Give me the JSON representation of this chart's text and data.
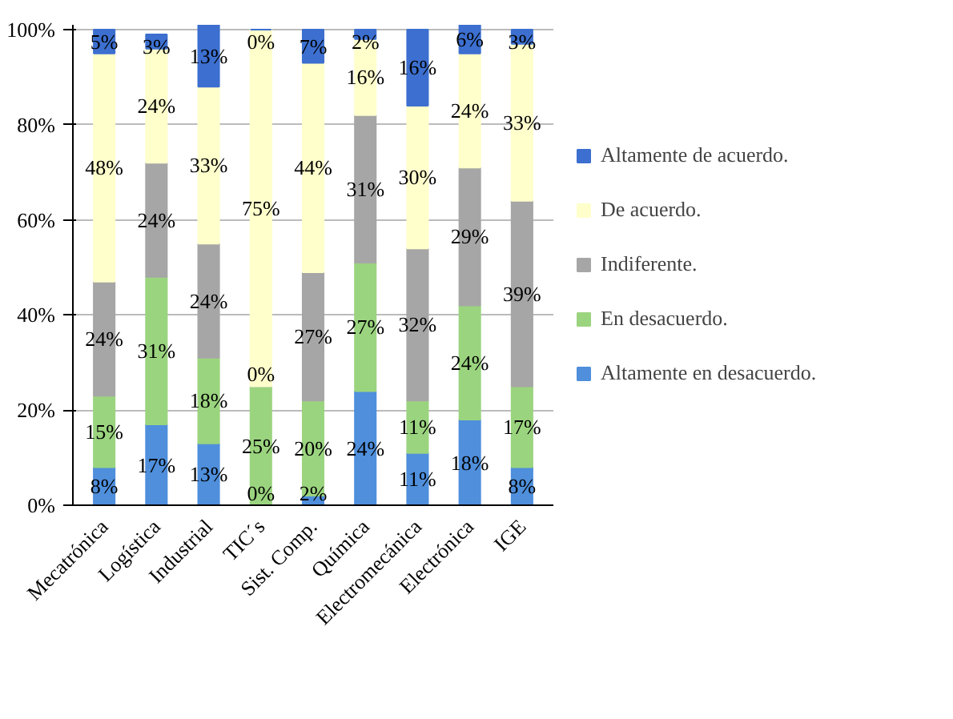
{
  "chart_data": {
    "type": "bar",
    "stacked": true,
    "categories": [
      "Mecatrónica",
      "Logística",
      "Industrial",
      "TIC´s",
      "Sist. Comp.",
      "Química",
      "Electromecánica",
      "Electrónica",
      "IGE"
    ],
    "series": [
      {
        "name": "Altamente en desacuerdo.",
        "color": "#4f8fdc",
        "values": [
          8,
          17,
          13,
          0,
          2,
          24,
          11,
          18,
          8
        ],
        "value_labels": [
          "8%",
          "17%",
          "13%",
          "0%",
          "2%",
          "24%",
          "11%",
          "18%",
          "8%"
        ]
      },
      {
        "name": "En desacuerdo.",
        "color": "#9bd47f",
        "values": [
          15,
          31,
          18,
          25,
          20,
          27,
          11,
          24,
          17
        ],
        "value_labels": [
          "15%",
          "31%",
          "18%",
          "25%",
          "20%",
          "27%",
          "11%",
          "24%",
          "17%"
        ]
      },
      {
        "name": "Indiferente.",
        "color": "#a6a6a6",
        "values": [
          24,
          24,
          24,
          0,
          27,
          31,
          32,
          29,
          39
        ],
        "value_labels": [
          "24%",
          "24%",
          "24%",
          "0%",
          "27%",
          "31%",
          "32%",
          "29%",
          "39%"
        ]
      },
      {
        "name": "De acuerdo.",
        "color": "#ffffcc",
        "values": [
          48,
          24,
          33,
          75,
          44,
          16,
          30,
          24,
          33
        ],
        "value_labels": [
          "48%",
          "24%",
          "33%",
          "75%",
          "44%",
          "16%",
          "30%",
          "24%",
          "33%"
        ]
      },
      {
        "name": "Altamente de acuerdo.",
        "color": "#3c6fcf",
        "values": [
          5,
          3,
          13,
          0,
          7,
          2,
          16,
          6,
          3
        ],
        "value_labels": [
          "5%",
          "3%",
          "13%",
          "0%",
          "7%",
          "2%",
          "16%",
          "6%",
          "3%"
        ]
      }
    ],
    "ylim": [
      0,
      101
    ],
    "yticks": [
      {
        "value": 0,
        "label": "0%"
      },
      {
        "value": 20,
        "label": "20%"
      },
      {
        "value": 40,
        "label": "40%"
      },
      {
        "value": 60,
        "label": "60%"
      },
      {
        "value": 80,
        "label": "80%"
      },
      {
        "value": 100,
        "label": "100%"
      }
    ],
    "grid": "y",
    "legend": "right"
  }
}
